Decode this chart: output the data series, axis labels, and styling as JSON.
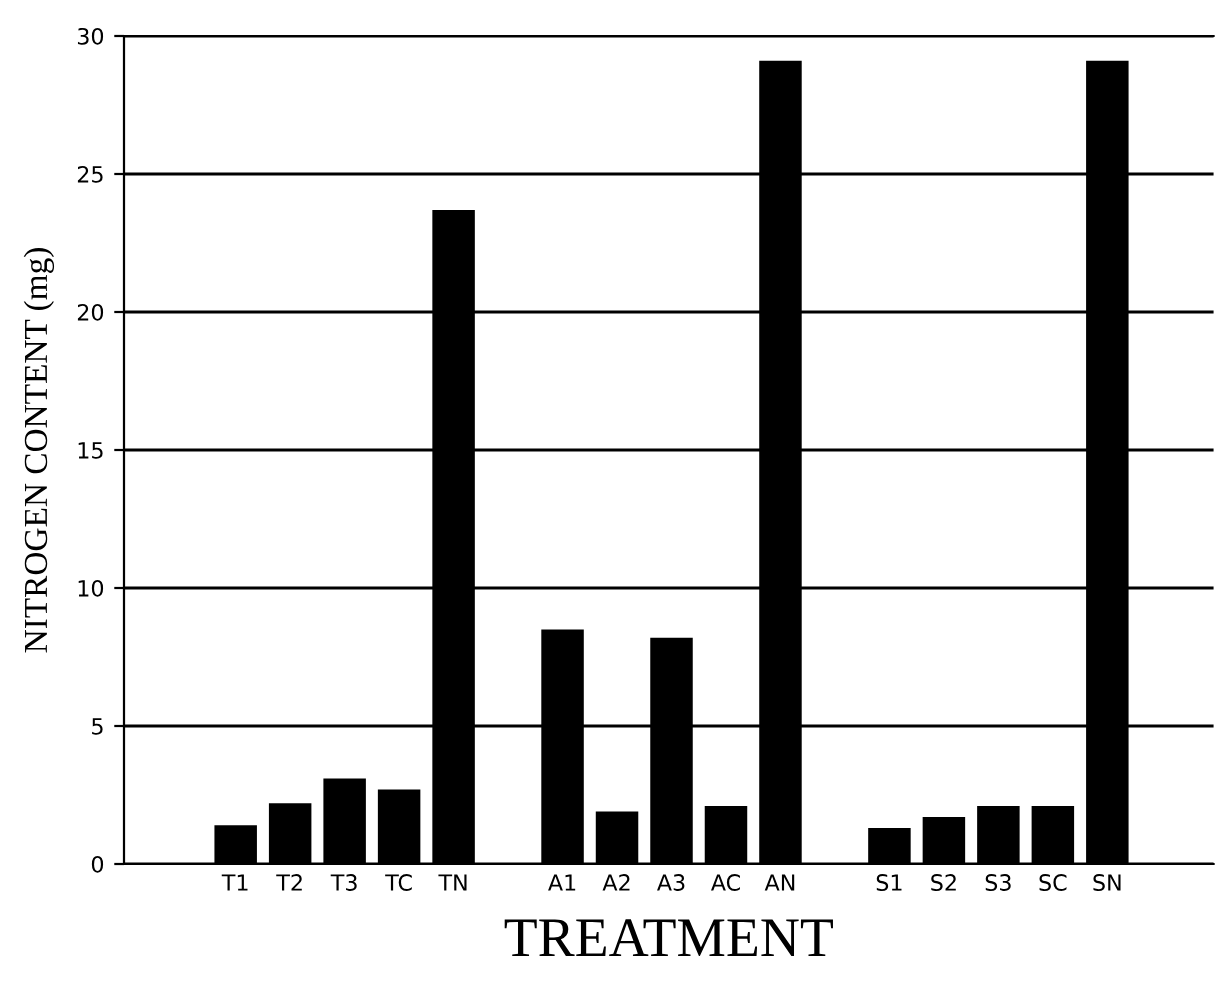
{
  "chart_data": {
    "type": "bar",
    "xlabel": "TREATMENT",
    "ylabel": "NITROGEN CONTENT (mg)",
    "categories": [
      "T1",
      "T2",
      "T3",
      "TC",
      "TN",
      null,
      "A1",
      "A2",
      "A3",
      "AC",
      "AN",
      null,
      "S1",
      "S2",
      "S3",
      "SC",
      "SN"
    ],
    "values": [
      1.4,
      2.2,
      3.1,
      2.7,
      23.7,
      null,
      8.5,
      1.9,
      8.2,
      2.1,
      29.1,
      null,
      1.3,
      1.7,
      2.1,
      2.1,
      29.1
    ],
    "color": "#000000",
    "ylim": [
      0,
      30
    ],
    "yticks": [
      0,
      5,
      10,
      15,
      20,
      25,
      30
    ],
    "grid": "y"
  }
}
